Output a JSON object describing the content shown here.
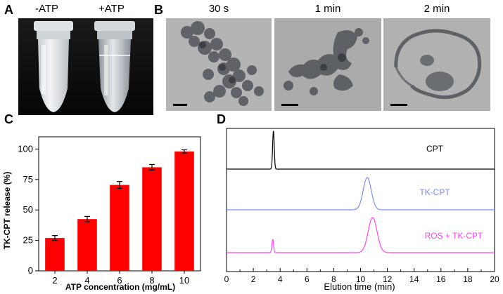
{
  "panels": {
    "a": "A",
    "b": "B",
    "c": "C",
    "d": "D"
  },
  "panel_a": {
    "tube_labels": [
      "-ATP",
      "+ATP"
    ]
  },
  "panel_b": {
    "time_labels": [
      "30 s",
      "1 min",
      "2 min"
    ]
  },
  "chart_data": [
    {
      "type": "bar",
      "xlabel": "ATP concentration (mg/mL)",
      "ylabel": "TK-CPT release (%)",
      "categories": [
        "2",
        "4",
        "6",
        "8",
        "10"
      ],
      "values": [
        27,
        42.5,
        70.5,
        85,
        98
      ],
      "errors": [
        2,
        2.2,
        2.8,
        2.3,
        1.3
      ],
      "ylim": [
        0,
        110
      ],
      "yticks": [
        "0",
        "25",
        "50",
        "75",
        "100"
      ],
      "bar_color": "#ff0000"
    },
    {
      "type": "line",
      "xlabel": "Elution time (min)",
      "xlim": [
        0,
        20
      ],
      "xticks": [
        "0",
        "2",
        "4",
        "6",
        "8",
        "10",
        "12",
        "14",
        "16",
        "18",
        "20"
      ],
      "series": [
        {
          "name": "CPT",
          "color": "#000000",
          "peaks": [
            {
              "x": 3.5,
              "h": 1.0,
              "w": 0.06
            }
          ]
        },
        {
          "name": "TK-CPT",
          "color": "#7a8cf0",
          "peaks": [
            {
              "x": 10.5,
              "h": 0.92,
              "w": 0.3
            }
          ]
        },
        {
          "name": "ROS + TK-CPT",
          "color": "#ff44ee",
          "peaks": [
            {
              "x": 3.45,
              "h": 0.38,
              "w": 0.06
            },
            {
              "x": 10.9,
              "h": 1.0,
              "w": 0.33
            }
          ]
        }
      ]
    }
  ]
}
